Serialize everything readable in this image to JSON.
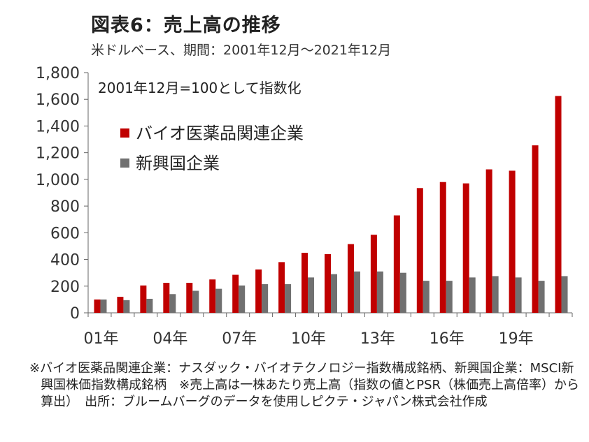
{
  "title": "図表6：売上高の推移",
  "subtitle": "米ドルベース、期間：2001年12月～2021年12月",
  "note": "※バイオ医薬品関連企業：ナスダック・バイオテクノロジー指数構成銘柄、新興国企業：MSCI新興国株価指数構成銘柄　※売上高は一株あたり売上高（指数の値とPSR（株価売上高倍率）から算出）　出所：ブルームバーグのデータを使用しピクテ・ジャパン株式会社作成",
  "chart_data": {
    "type": "bar",
    "annotation": "2001年12月=100として指数化",
    "x": [
      2001,
      2002,
      2003,
      2004,
      2005,
      2006,
      2007,
      2008,
      2009,
      2010,
      2011,
      2012,
      2013,
      2014,
      2015,
      2016,
      2017,
      2018,
      2019,
      2020,
      2021
    ],
    "x_tick_labels": [
      {
        "x": 2001,
        "label": "01年"
      },
      {
        "x": 2004,
        "label": "04年"
      },
      {
        "x": 2007,
        "label": "07年"
      },
      {
        "x": 2010,
        "label": "10年"
      },
      {
        "x": 2013,
        "label": "13年"
      },
      {
        "x": 2016,
        "label": "16年"
      },
      {
        "x": 2019,
        "label": "19年"
      }
    ],
    "y_ticks": [
      "0",
      "200",
      "400",
      "600",
      "800",
      "1,000",
      "1,200",
      "1,400",
      "1,600",
      "1,800"
    ],
    "ylim": [
      0,
      1800
    ],
    "series": [
      {
        "name": "バイオ医薬品関連企業",
        "color": "#c00000",
        "values": [
          100,
          120,
          205,
          225,
          225,
          250,
          285,
          325,
          380,
          450,
          440,
          515,
          585,
          730,
          935,
          980,
          970,
          1075,
          1065,
          1255,
          1625
        ]
      },
      {
        "name": "新興国企業",
        "color": "#707070",
        "values": [
          100,
          95,
          105,
          140,
          165,
          180,
          205,
          215,
          215,
          265,
          290,
          310,
          310,
          300,
          240,
          240,
          265,
          275,
          265,
          240,
          275
        ]
      }
    ],
    "legend_position": "upper-left",
    "grid": false
  }
}
